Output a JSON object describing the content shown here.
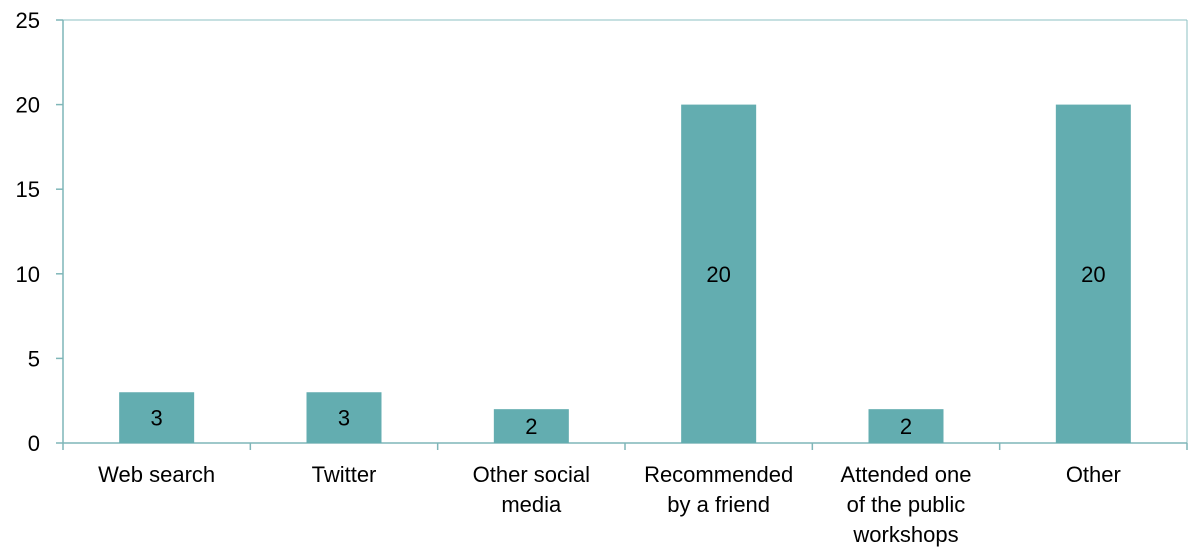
{
  "chart_data": {
    "type": "bar",
    "title": "",
    "xlabel": "",
    "ylabel": "",
    "categories": [
      "Web search",
      "Twitter",
      "Other social media",
      "Recommended by a friend",
      "Attended one of the public workshops",
      "Other"
    ],
    "category_lines": [
      [
        "Web search"
      ],
      [
        "Twitter"
      ],
      [
        "Other social",
        "media"
      ],
      [
        "Recommended",
        "by a friend"
      ],
      [
        "Attended one",
        "of the public",
        "workshops"
      ],
      [
        "Other"
      ]
    ],
    "values": [
      3,
      3,
      2,
      20,
      2,
      20
    ],
    "data_labels": [
      "3",
      "3",
      "2",
      "20",
      "2",
      "20"
    ],
    "ylim": [
      0,
      25
    ],
    "yticks": [
      "0",
      "5",
      "10",
      "15",
      "20",
      "25"
    ],
    "grid": false,
    "legend": "none",
    "colors": {
      "bar": "#63adb0",
      "axis": "#7fb6b8",
      "plot_border": "#8ec1c3",
      "text": "#000000"
    }
  }
}
